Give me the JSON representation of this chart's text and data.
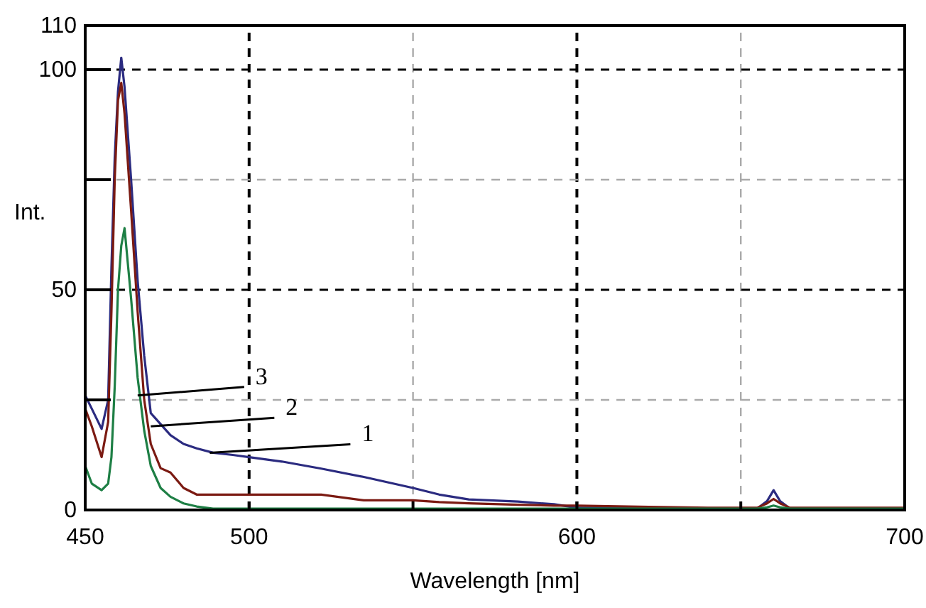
{
  "chart_data": {
    "type": "line",
    "xlabel": "Wavelength [nm]",
    "ylabel": "Int.",
    "xlim": [
      450,
      700
    ],
    "ylim": [
      0,
      110
    ],
    "xticks": [
      450,
      500,
      {
        "value": 550,
        "label": null
      },
      600,
      {
        "value": 650,
        "label": null
      },
      700
    ],
    "yticks": [
      0,
      {
        "value": 25,
        "label": null
      },
      50,
      {
        "value": 75,
        "label": null
      },
      100,
      110
    ],
    "grid": true,
    "line_style": "solid",
    "x": [
      450,
      452,
      455,
      457,
      458,
      459,
      460,
      461,
      462,
      464,
      466,
      468,
      470,
      473,
      476,
      480,
      484,
      489,
      495,
      500,
      510,
      522,
      535,
      550,
      558,
      567,
      582,
      593,
      600,
      622,
      640,
      655,
      658,
      660,
      662,
      665,
      680,
      700
    ],
    "series": [
      {
        "color": "#2b2b80",
        "values": [
          26,
          23,
          18.4,
          25,
          55,
          80,
          95,
          102.7,
          96,
          75,
          52,
          35,
          22,
          19.5,
          17,
          15,
          14,
          13,
          12.5,
          12,
          11,
          9.4,
          7.5,
          5,
          3.5,
          2.4,
          1.9,
          1.3,
          0.5,
          0.5,
          0.3,
          0.3,
          2,
          4.5,
          2,
          0.3,
          0.3,
          0.3
        ]
      },
      {
        "color": "#7b1a12",
        "values": [
          23,
          19,
          12,
          20,
          45,
          75,
          93,
          97,
          90,
          68,
          45,
          25,
          15,
          9.5,
          8.5,
          5,
          3.5,
          3.5,
          3.5,
          3.5,
          3.5,
          3.5,
          2.2,
          2.2,
          1.8,
          1.5,
          1.2,
          1,
          1,
          0.7,
          0.5,
          0.5,
          1.5,
          2.5,
          1.5,
          0.5,
          0.5,
          0.5
        ]
      },
      {
        "color": "#1e7f45",
        "values": [
          10,
          6,
          4.5,
          6,
          12,
          28,
          50,
          60,
          64,
          48,
          30,
          18,
          10,
          5,
          3,
          1.5,
          0.8,
          0.3,
          0.3,
          0.3,
          0.3,
          0.3,
          0.3,
          0.3,
          0.3,
          0.3,
          0.3,
          0.3,
          0.3,
          0.3,
          0.3,
          0.3,
          0.6,
          1,
          0.6,
          0.3,
          0.3,
          0.3
        ]
      }
    ],
    "annotations": [
      {
        "text": "3",
        "x": 466,
        "y": 26
      },
      {
        "text": "2",
        "x": 470,
        "y": 19
      },
      {
        "text": "1",
        "x": 488,
        "y": 13
      }
    ]
  }
}
